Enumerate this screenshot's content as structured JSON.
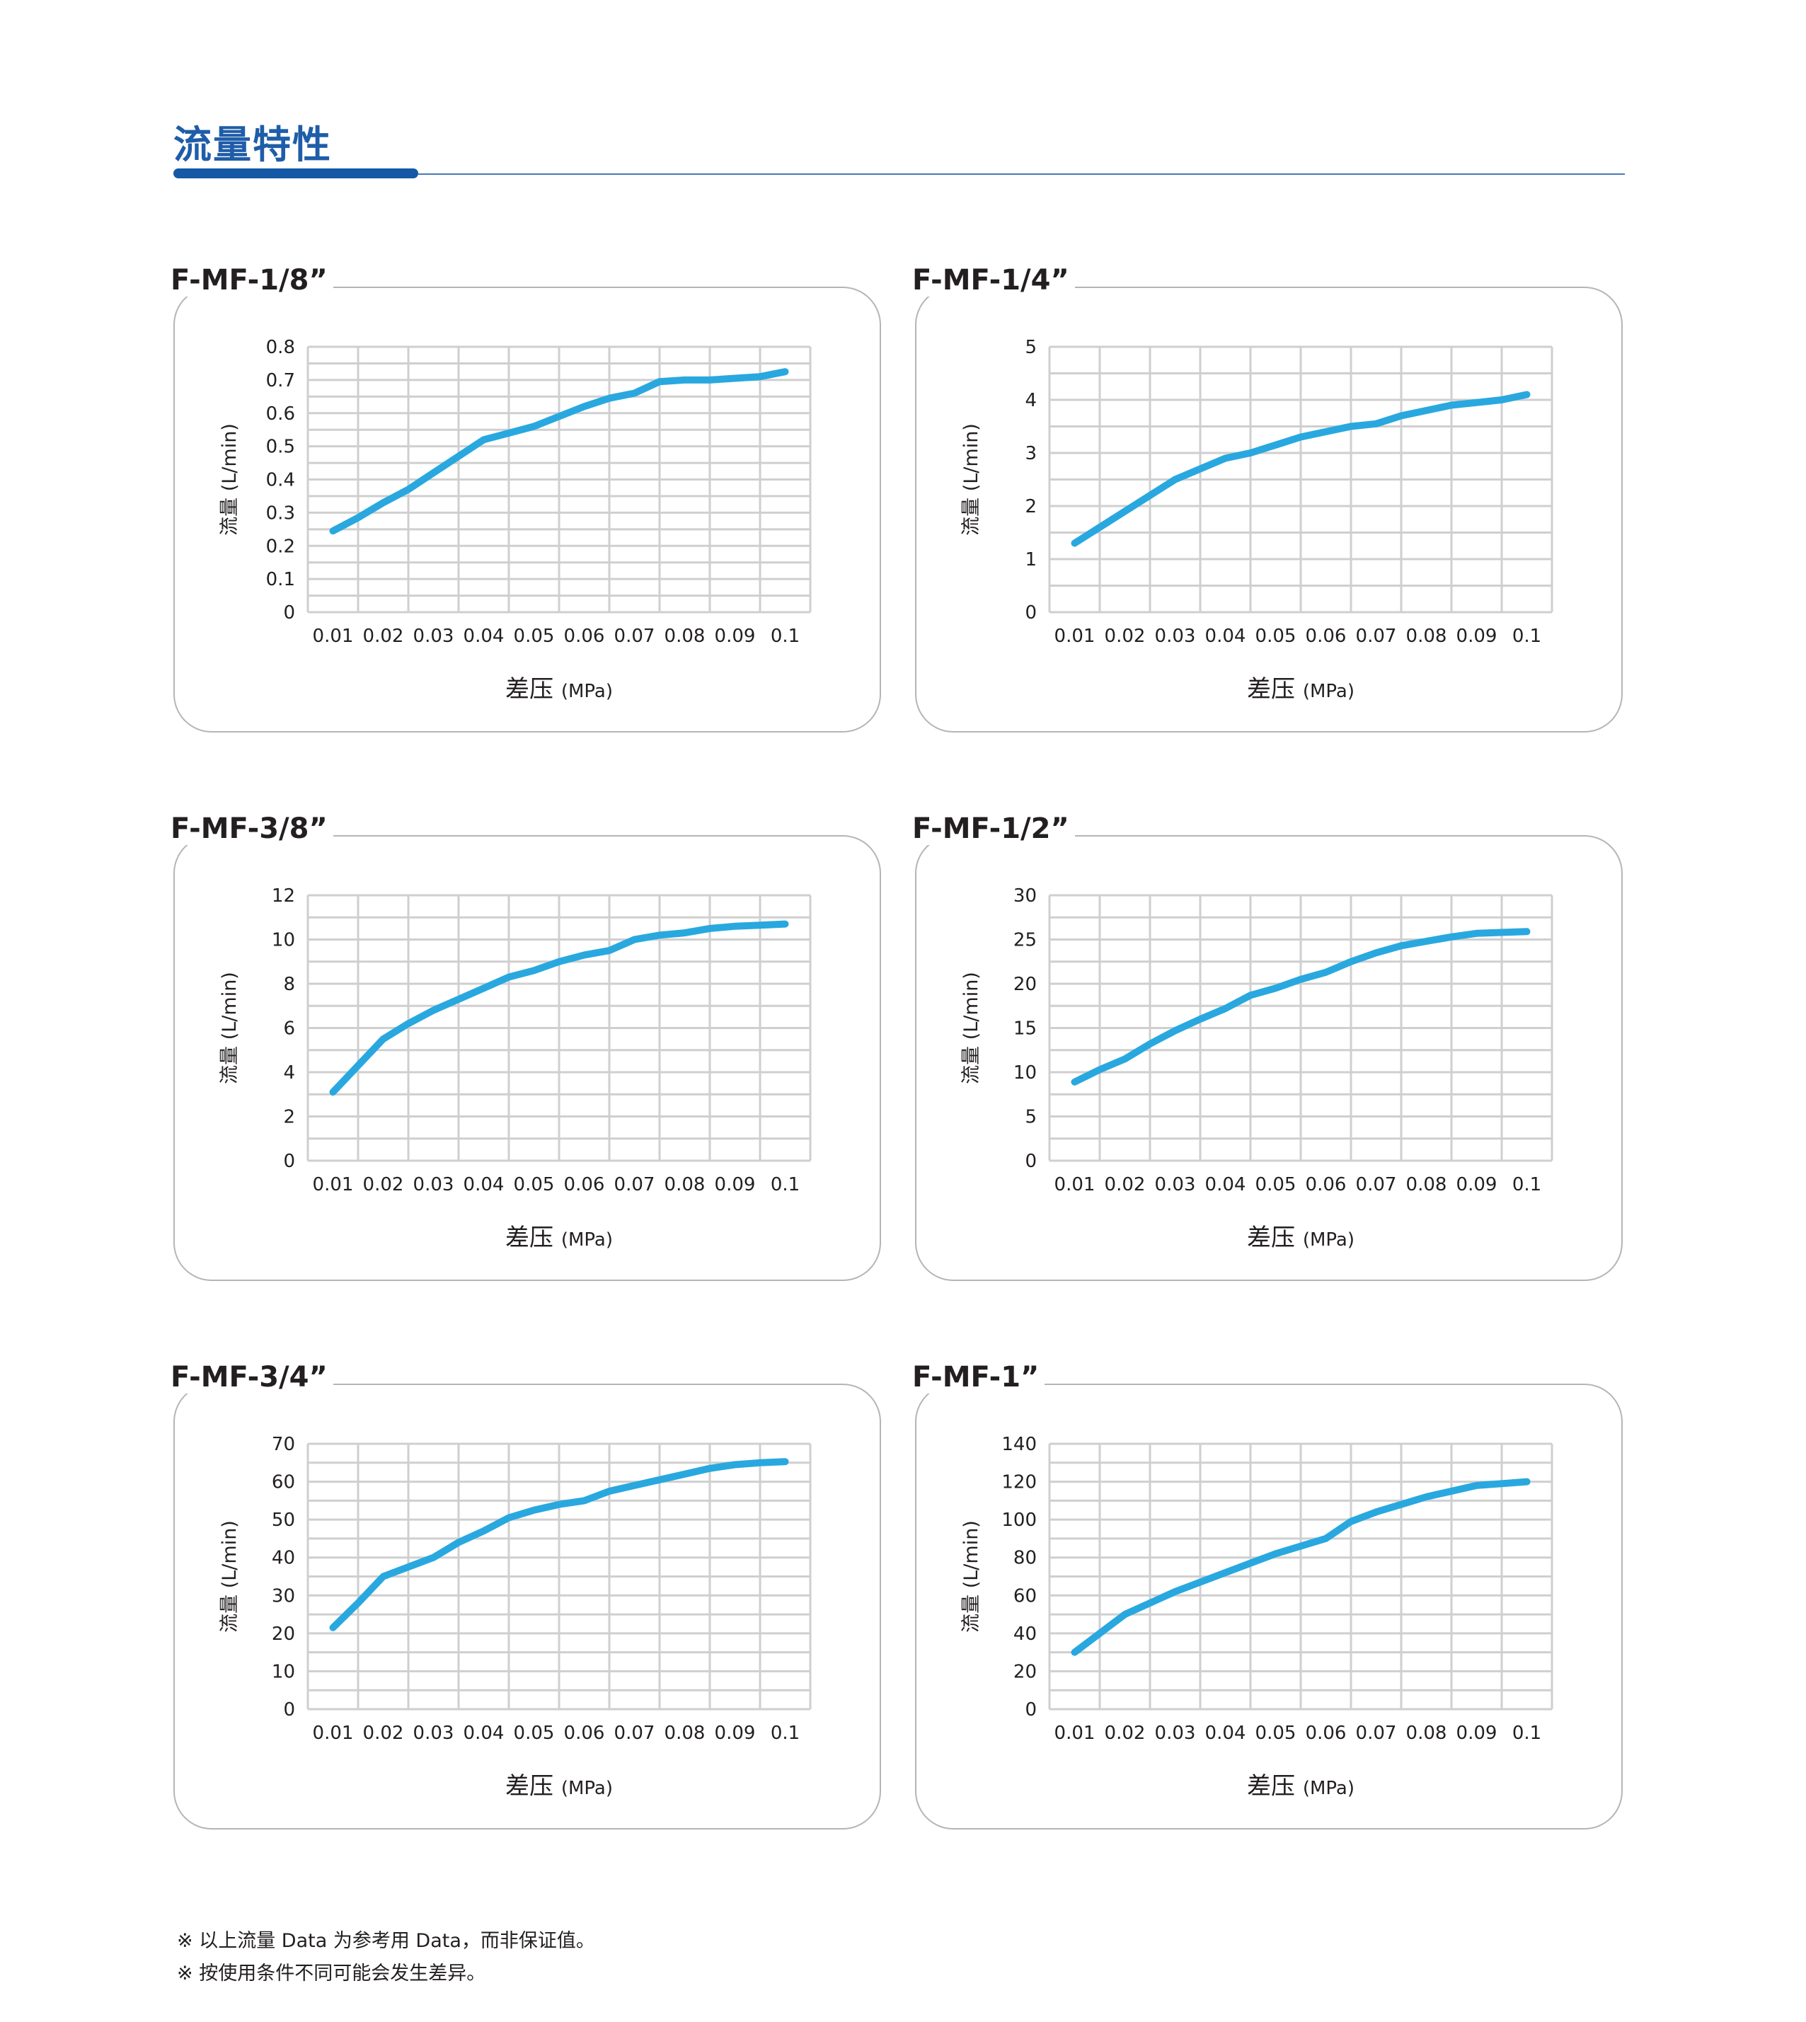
{
  "page": {
    "section_title": "流量特性",
    "footnotes": [
      "※ 以上流量 Data 为参考用 Data，而非保证值。",
      "※ 按使用条件不同可能会发生差异。"
    ]
  },
  "colors": {
    "accent": "#1f5da8",
    "line": "#29a8df",
    "grid": "#cfcfcf",
    "panel_border": "#b5b5b5"
  },
  "chart_data": [
    {
      "type": "line",
      "title": "F-MF-1/8”",
      "xlabel": "差压",
      "xlabel_unit": "(MPa)",
      "ylabel": "流量 (L/min)",
      "categories": [
        "0.01",
        "0.02",
        "0.03",
        "0.04",
        "0.05",
        "0.06",
        "0.07",
        "0.08",
        "0.09",
        "0.1"
      ],
      "y_tick_labels": [
        "0",
        "0.1",
        "0.2",
        "0.3",
        "0.4",
        "0.5",
        "0.6",
        "0.7",
        "0.8"
      ],
      "ylim": [
        0,
        0.8
      ],
      "x": [
        0.0,
        0.5,
        1.0,
        1.5,
        2.0,
        2.5,
        3.0,
        3.5,
        4.0,
        4.5,
        5.0,
        5.5,
        6.0,
        6.5,
        7.0,
        7.5,
        8.0,
        8.5,
        9.0
      ],
      "values": [
        0.245,
        0.285,
        0.33,
        0.37,
        0.42,
        0.47,
        0.52,
        0.54,
        0.56,
        0.59,
        0.62,
        0.645,
        0.66,
        0.695,
        0.7,
        0.7,
        0.705,
        0.71,
        0.725
      ]
    },
    {
      "type": "line",
      "title": "F-MF-1/4”",
      "xlabel": "差压",
      "xlabel_unit": "(MPa)",
      "ylabel": "流量 (L/min)",
      "categories": [
        "0.01",
        "0.02",
        "0.03",
        "0.04",
        "0.05",
        "0.06",
        "0.07",
        "0.08",
        "0.09",
        "0.1"
      ],
      "y_tick_labels": [
        "0",
        "1",
        "2",
        "3",
        "4",
        "5"
      ],
      "ylim": [
        0,
        5
      ],
      "x": [
        0.0,
        0.5,
        1.0,
        1.5,
        2.0,
        2.5,
        3.0,
        3.5,
        4.0,
        4.5,
        5.0,
        5.5,
        6.0,
        6.5,
        7.0,
        7.5,
        8.0,
        8.5,
        9.0
      ],
      "values": [
        1.3,
        1.6,
        1.9,
        2.2,
        2.5,
        2.7,
        2.9,
        3.0,
        3.15,
        3.3,
        3.4,
        3.5,
        3.55,
        3.7,
        3.8,
        3.9,
        3.95,
        4.0,
        4.1
      ]
    },
    {
      "type": "line",
      "title": "F-MF-3/8”",
      "xlabel": "差压",
      "xlabel_unit": "(MPa)",
      "ylabel": "流量 (L/min)",
      "categories": [
        "0.01",
        "0.02",
        "0.03",
        "0.04",
        "0.05",
        "0.06",
        "0.07",
        "0.08",
        "0.09",
        "0.1"
      ],
      "y_tick_labels": [
        "0",
        "2",
        "4",
        "6",
        "8",
        "10",
        "12"
      ],
      "ylim": [
        0,
        12
      ],
      "x": [
        0.0,
        0.5,
        1.0,
        1.5,
        2.0,
        2.5,
        3.0,
        3.5,
        4.0,
        4.5,
        5.0,
        5.5,
        6.0,
        6.5,
        7.0,
        7.5,
        8.0,
        8.5,
        9.0
      ],
      "values": [
        3.1,
        4.3,
        5.5,
        6.2,
        6.8,
        7.3,
        7.8,
        8.3,
        8.6,
        9.0,
        9.3,
        9.5,
        10.0,
        10.2,
        10.3,
        10.5,
        10.6,
        10.65,
        10.7
      ]
    },
    {
      "type": "line",
      "title": "F-MF-1/2”",
      "xlabel": "差压",
      "xlabel_unit": "(MPa)",
      "ylabel": "流量 (L/min)",
      "categories": [
        "0.01",
        "0.02",
        "0.03",
        "0.04",
        "0.05",
        "0.06",
        "0.07",
        "0.08",
        "0.09",
        "0.1"
      ],
      "y_tick_labels": [
        "0",
        "5",
        "10",
        "15",
        "20",
        "25",
        "30"
      ],
      "ylim": [
        0,
        30
      ],
      "x": [
        0.0,
        0.5,
        1.0,
        1.5,
        2.0,
        2.5,
        3.0,
        3.5,
        4.0,
        4.5,
        5.0,
        5.5,
        6.0,
        6.5,
        7.0,
        7.5,
        8.0,
        8.5,
        9.0
      ],
      "values": [
        8.9,
        10.3,
        11.5,
        13.2,
        14.7,
        16.0,
        17.2,
        18.7,
        19.5,
        20.5,
        21.3,
        22.5,
        23.5,
        24.3,
        24.8,
        25.3,
        25.7,
        25.8,
        25.9
      ]
    },
    {
      "type": "line",
      "title": "F-MF-3/4”",
      "xlabel": "差压",
      "xlabel_unit": "(MPa)",
      "ylabel": "流量 (L/min)",
      "categories": [
        "0.01",
        "0.02",
        "0.03",
        "0.04",
        "0.05",
        "0.06",
        "0.07",
        "0.08",
        "0.09",
        "0.1"
      ],
      "y_tick_labels": [
        "0",
        "10",
        "20",
        "30",
        "40",
        "50",
        "60",
        "70"
      ],
      "ylim": [
        0,
        70
      ],
      "x": [
        0.0,
        0.5,
        1.0,
        1.5,
        2.0,
        2.5,
        3.0,
        3.5,
        4.0,
        4.5,
        5.0,
        5.5,
        6.0,
        6.5,
        7.0,
        7.5,
        8.0,
        8.5,
        9.0
      ],
      "values": [
        21.5,
        28.0,
        35.0,
        37.5,
        40.0,
        44.0,
        47.0,
        50.5,
        52.5,
        54.0,
        55.0,
        57.5,
        59.0,
        60.5,
        62.0,
        63.5,
        64.5,
        65.0,
        65.3
      ]
    },
    {
      "type": "line",
      "title": "F-MF-1”",
      "xlabel": "差压",
      "xlabel_unit": "(MPa)",
      "ylabel": "流量 (L/min)",
      "categories": [
        "0.01",
        "0.02",
        "0.03",
        "0.04",
        "0.05",
        "0.06",
        "0.07",
        "0.08",
        "0.09",
        "0.1"
      ],
      "y_tick_labels": [
        "0",
        "20",
        "40",
        "60",
        "80",
        "100",
        "120",
        "140"
      ],
      "ylim": [
        0,
        140
      ],
      "x": [
        0.0,
        0.5,
        1.0,
        1.5,
        2.0,
        2.5,
        3.0,
        3.5,
        4.0,
        4.5,
        5.0,
        5.5,
        6.0,
        6.5,
        7.0,
        7.5,
        8.0,
        8.5,
        9.0
      ],
      "values": [
        30,
        40,
        50,
        56,
        62,
        67,
        72,
        77,
        82,
        86,
        90,
        99,
        104,
        108,
        112,
        115,
        118,
        119,
        120
      ]
    }
  ]
}
